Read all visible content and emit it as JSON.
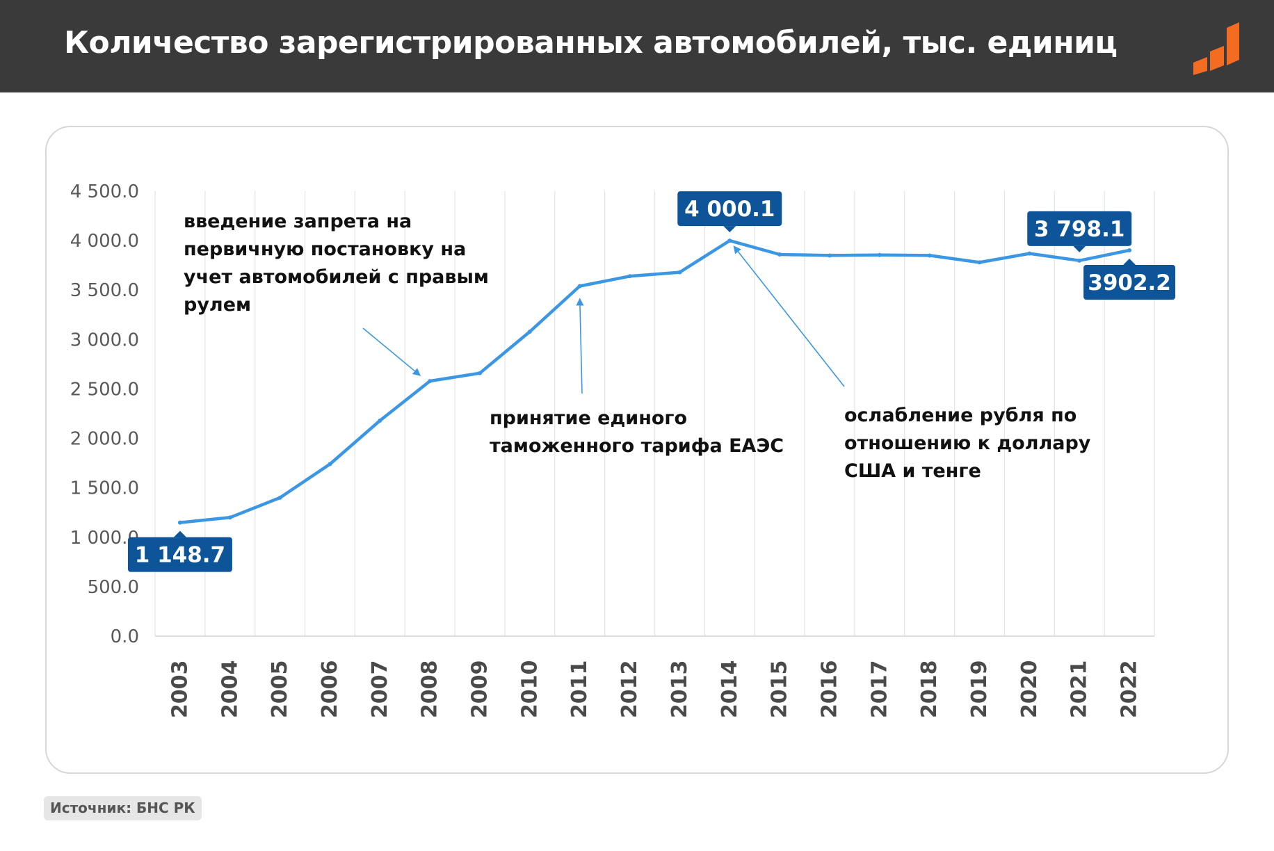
{
  "header": {
    "title": "Количество зарегистрированных автомобилей, тыс. единиц",
    "logo_icon": "brand-bars-logo",
    "background": "#3a3a3a",
    "accent": "#f36c21"
  },
  "source": {
    "text": "Источник: БНС РК"
  },
  "chart_data": {
    "type": "line",
    "title": "",
    "xlabel": "",
    "ylabel": "",
    "categories": [
      "2003",
      "2004",
      "2005",
      "2006",
      "2007",
      "2008",
      "2009",
      "2010",
      "2011",
      "2012",
      "2013",
      "2014",
      "2015",
      "2016",
      "2017",
      "2018",
      "2019",
      "2020",
      "2021",
      "2022"
    ],
    "values": [
      1148.7,
      1200,
      1400,
      1740,
      2180,
      2580,
      2660,
      3080,
      3540,
      3640,
      3680,
      4000.1,
      3860,
      3850,
      3855,
      3850,
      3780,
      3870,
      3798.1,
      3902.2
    ],
    "ylim": [
      0,
      4500
    ],
    "y_ticks": [
      "0.0",
      "500.0",
      "1 000.0",
      "1 500.0",
      "2 000.0",
      "2 500.0",
      "3 000.0",
      "3 500.0",
      "4 000.0",
      "4 500.0"
    ],
    "grid": "vertical",
    "line_color": "#3b97e3",
    "data_labels": [
      {
        "index": 0,
        "text": "1 148.7",
        "pointer": "up"
      },
      {
        "index": 11,
        "text": "4 000.1",
        "pointer": "down"
      },
      {
        "index": 18,
        "text": "3 798.1",
        "pointer": "down"
      },
      {
        "index": 19,
        "text": "3902.2",
        "pointer": "up"
      }
    ],
    "label_color": "#0d5598",
    "annotations": [
      {
        "lines": [
          "введение запрета на",
          "первичную постановку на",
          "учет автомобилей с правым",
          "рулем"
        ]
      },
      {
        "lines": [
          "принятие единого",
          "таможенного тарифа ЕАЭС"
        ]
      },
      {
        "lines": [
          "ослабление рубля по",
          "отношению к доллару",
          "США и тенге"
        ]
      }
    ]
  }
}
